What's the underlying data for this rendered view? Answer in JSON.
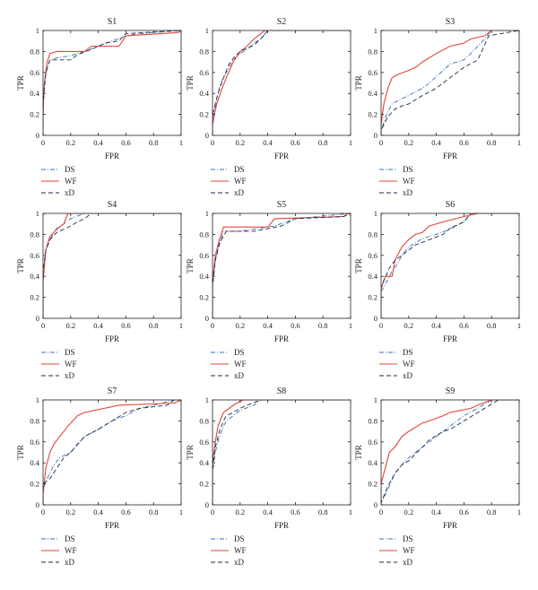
{
  "colors": {
    "DS": "#3a6fb0",
    "WF": "#e0463a",
    "xD": "#1c2a44",
    "axis": "#222222"
  },
  "chart_data": [
    {
      "type": "line",
      "title": "S1",
      "xlabel": "FPR",
      "ylabel": "TPR",
      "xlim": [
        0,
        1
      ],
      "ylim": [
        0,
        1
      ],
      "xticks": [
        "0",
        "0.2",
        "0.4",
        "0.6",
        "0.8",
        "1"
      ],
      "yticks": [
        "0",
        "0.2",
        "0.4",
        "0.6",
        "0.8",
        "1"
      ],
      "legend": [
        "DS",
        "WF",
        "xD"
      ],
      "legend_position": "below",
      "series": [
        {
          "name": "DS",
          "x": [
            0,
            0,
            0.01,
            0.03,
            0.05,
            0.1,
            0.2,
            0.3,
            0.4,
            0.5,
            0.6,
            0.7,
            1
          ],
          "y": [
            0,
            0.25,
            0.5,
            0.65,
            0.72,
            0.74,
            0.76,
            0.8,
            0.85,
            0.9,
            0.95,
            0.97,
            1
          ]
        },
        {
          "name": "WF",
          "x": [
            0,
            0,
            0.01,
            0.03,
            0.05,
            0.1,
            0.3,
            0.35,
            0.55,
            0.6,
            0.98,
            1
          ],
          "y": [
            0,
            0.2,
            0.5,
            0.7,
            0.78,
            0.8,
            0.8,
            0.85,
            0.85,
            0.95,
            0.98,
            1
          ]
        },
        {
          "name": "xD",
          "x": [
            0,
            0,
            0.02,
            0.05,
            0.2,
            0.25,
            0.35,
            0.45,
            0.55,
            0.6,
            1
          ],
          "y": [
            0,
            0.3,
            0.6,
            0.72,
            0.72,
            0.77,
            0.82,
            0.88,
            0.9,
            0.97,
            1
          ]
        }
      ]
    },
    {
      "type": "line",
      "title": "S2",
      "xlabel": "FPR",
      "ylabel": "TPR",
      "xlim": [
        0,
        1
      ],
      "ylim": [
        0,
        1
      ],
      "xticks": [
        "0",
        "0.2",
        "0.4",
        "0.6",
        "0.8",
        "1"
      ],
      "yticks": [
        "0",
        "0.2",
        "0.4",
        "0.6",
        "0.8",
        "1"
      ],
      "legend": [
        "DS",
        "WF",
        "xD"
      ],
      "legend_position": "below",
      "series": [
        {
          "name": "DS",
          "x": [
            0,
            0,
            0.03,
            0.06,
            0.1,
            0.15,
            0.2,
            0.25,
            0.3,
            0.35,
            0.4,
            1
          ],
          "y": [
            0,
            0.15,
            0.35,
            0.5,
            0.6,
            0.72,
            0.78,
            0.82,
            0.88,
            0.92,
            1,
            1
          ]
        },
        {
          "name": "WF",
          "x": [
            0,
            0,
            0.03,
            0.07,
            0.1,
            0.15,
            0.2,
            0.25,
            0.3,
            0.38,
            0.4,
            1
          ],
          "y": [
            0,
            0.1,
            0.3,
            0.45,
            0.55,
            0.7,
            0.8,
            0.85,
            0.92,
            1,
            1,
            1
          ]
        },
        {
          "name": "xD",
          "x": [
            0,
            0,
            0.04,
            0.08,
            0.12,
            0.16,
            0.2,
            0.3,
            0.35,
            0.4,
            1
          ],
          "y": [
            0,
            0.2,
            0.4,
            0.55,
            0.68,
            0.75,
            0.8,
            0.86,
            0.92,
            1,
            1
          ]
        }
      ]
    },
    {
      "type": "line",
      "title": "S3",
      "xlabel": "FPR",
      "ylabel": "TPR",
      "xlim": [
        0,
        1
      ],
      "ylim": [
        0,
        1
      ],
      "xticks": [
        "0",
        "0.2",
        "0.4",
        "0.6",
        "0.8",
        "1"
      ],
      "yticks": [
        "0",
        "0.2",
        "0.4",
        "0.6",
        "0.8",
        "1"
      ],
      "legend": [
        "DS",
        "WF",
        "xD"
      ],
      "legend_position": "below",
      "series": [
        {
          "name": "DS",
          "x": [
            0,
            0,
            0.04,
            0.08,
            0.15,
            0.2,
            0.3,
            0.35,
            0.45,
            0.5,
            0.6,
            0.65,
            0.75,
            0.8,
            1
          ],
          "y": [
            0,
            0.05,
            0.2,
            0.3,
            0.35,
            0.38,
            0.45,
            0.5,
            0.62,
            0.68,
            0.72,
            0.78,
            0.92,
            1,
            1
          ]
        },
        {
          "name": "WF",
          "x": [
            0,
            0,
            0.02,
            0.05,
            0.08,
            0.12,
            0.2,
            0.25,
            0.3,
            0.4,
            0.5,
            0.6,
            0.65,
            0.75,
            0.8,
            1
          ],
          "y": [
            0,
            0.1,
            0.3,
            0.45,
            0.55,
            0.58,
            0.62,
            0.65,
            0.7,
            0.78,
            0.85,
            0.88,
            0.92,
            0.95,
            1,
            1
          ]
        },
        {
          "name": "xD",
          "x": [
            0,
            0,
            0.05,
            0.1,
            0.15,
            0.2,
            0.3,
            0.4,
            0.45,
            0.5,
            0.55,
            0.6,
            0.7,
            0.78,
            1
          ],
          "y": [
            0,
            0.05,
            0.18,
            0.25,
            0.28,
            0.3,
            0.38,
            0.45,
            0.5,
            0.55,
            0.6,
            0.65,
            0.72,
            0.95,
            1
          ]
        }
      ]
    },
    {
      "type": "line",
      "title": "S4",
      "xlabel": "FPR",
      "ylabel": "TPR",
      "xlim": [
        0,
        1
      ],
      "ylim": [
        0,
        1
      ],
      "xticks": [
        "0",
        "0.2",
        "0.4",
        "0.6",
        "0.8",
        "1"
      ],
      "yticks": [
        "0",
        "0.2",
        "0.4",
        "0.6",
        "0.8",
        "1"
      ],
      "legend": [
        "DS",
        "WF",
        "xD"
      ],
      "legend_position": "below",
      "series": [
        {
          "name": "DS",
          "x": [
            0,
            0,
            0.02,
            0.05,
            0.08,
            0.1,
            0.15,
            0.2,
            0.3,
            1
          ],
          "y": [
            0,
            0.4,
            0.65,
            0.75,
            0.82,
            0.86,
            0.9,
            0.95,
            1,
            1
          ]
        },
        {
          "name": "WF",
          "x": [
            0,
            0,
            0.02,
            0.05,
            0.1,
            0.15,
            0.18,
            1
          ],
          "y": [
            0,
            0.35,
            0.65,
            0.78,
            0.85,
            0.9,
            1,
            1
          ]
        },
        {
          "name": "xD",
          "x": [
            0,
            0,
            0.02,
            0.05,
            0.1,
            0.15,
            0.2,
            0.25,
            0.3,
            0.35,
            1
          ],
          "y": [
            0,
            0.45,
            0.65,
            0.75,
            0.82,
            0.85,
            0.88,
            0.92,
            0.95,
            1,
            1
          ]
        }
      ]
    },
    {
      "type": "line",
      "title": "S5",
      "xlabel": "FPR",
      "ylabel": "TPR",
      "xlim": [
        0,
        1
      ],
      "ylim": [
        0,
        1
      ],
      "xticks": [
        "0",
        "0.2",
        "0.4",
        "0.6",
        "0.8",
        "1"
      ],
      "yticks": [
        "0",
        "0.2",
        "0.4",
        "0.6",
        "0.8",
        "1"
      ],
      "legend": [
        "DS",
        "WF",
        "xD"
      ],
      "legend_position": "below",
      "series": [
        {
          "name": "DS",
          "x": [
            0,
            0,
            0.02,
            0.05,
            0.08,
            0.2,
            0.3,
            0.45,
            0.6,
            1
          ],
          "y": [
            0,
            0.3,
            0.55,
            0.7,
            0.83,
            0.83,
            0.85,
            0.88,
            0.95,
            1
          ]
        },
        {
          "name": "WF",
          "x": [
            0,
            0,
            0.02,
            0.05,
            0.08,
            0.4,
            0.45,
            0.95,
            0.98,
            1
          ],
          "y": [
            0,
            0.35,
            0.6,
            0.75,
            0.87,
            0.87,
            0.95,
            0.97,
            1,
            1
          ]
        },
        {
          "name": "xD",
          "x": [
            0,
            0,
            0.02,
            0.05,
            0.1,
            0.3,
            0.5,
            0.6,
            0.95,
            1
          ],
          "y": [
            0,
            0.3,
            0.55,
            0.72,
            0.83,
            0.83,
            0.88,
            0.95,
            0.97,
            1
          ]
        }
      ]
    },
    {
      "type": "line",
      "title": "S6",
      "xlabel": "FPR",
      "ylabel": "TPR",
      "xlim": [
        0,
        1
      ],
      "ylim": [
        0,
        1
      ],
      "xticks": [
        "0",
        "0.2",
        "0.4",
        "0.6",
        "0.8",
        "1"
      ],
      "yticks": [
        "0",
        "0.2",
        "0.4",
        "0.6",
        "0.8",
        "1"
      ],
      "legend": [
        "DS",
        "WF",
        "xD"
      ],
      "legend_position": "below",
      "series": [
        {
          "name": "DS",
          "x": [
            0,
            0,
            0.04,
            0.08,
            0.12,
            0.15,
            0.2,
            0.25,
            0.3,
            0.4,
            0.5,
            0.6,
            0.65,
            1
          ],
          "y": [
            0,
            0.25,
            0.35,
            0.45,
            0.52,
            0.6,
            0.68,
            0.72,
            0.76,
            0.8,
            0.85,
            0.92,
            1,
            1
          ]
        },
        {
          "name": "WF",
          "x": [
            0,
            0,
            0.03,
            0.08,
            0.1,
            0.15,
            0.2,
            0.25,
            0.3,
            0.35,
            0.45,
            0.6,
            0.7,
            1
          ],
          "y": [
            0,
            0.28,
            0.4,
            0.4,
            0.55,
            0.68,
            0.75,
            0.8,
            0.82,
            0.88,
            0.92,
            0.97,
            1,
            1
          ]
        },
        {
          "name": "xD",
          "x": [
            0,
            0,
            0.04,
            0.06,
            0.1,
            0.15,
            0.2,
            0.25,
            0.35,
            0.45,
            0.5,
            0.6,
            0.65,
            1
          ],
          "y": [
            0,
            0.3,
            0.42,
            0.48,
            0.55,
            0.6,
            0.65,
            0.7,
            0.75,
            0.8,
            0.86,
            0.92,
            1,
            1
          ]
        }
      ]
    },
    {
      "type": "line",
      "title": "S7",
      "xlabel": "FPR",
      "ylabel": "TPR",
      "xlim": [
        0,
        1
      ],
      "ylim": [
        0,
        1
      ],
      "xticks": [
        "0",
        "0.2",
        "0.4",
        "0.6",
        "0.8",
        "1"
      ],
      "yticks": [
        "0",
        "0.2",
        "0.4",
        "0.6",
        "0.8",
        "1"
      ],
      "legend": [
        "DS",
        "WF",
        "xD"
      ],
      "legend_position": "below",
      "series": [
        {
          "name": "DS",
          "x": [
            0,
            0,
            0.04,
            0.08,
            0.12,
            0.2,
            0.25,
            0.3,
            0.4,
            0.5,
            0.6,
            0.7,
            0.8,
            0.95,
            1
          ],
          "y": [
            0,
            0.15,
            0.28,
            0.38,
            0.45,
            0.5,
            0.58,
            0.65,
            0.72,
            0.8,
            0.85,
            0.92,
            0.95,
            1,
            1
          ]
        },
        {
          "name": "WF",
          "x": [
            0,
            0,
            0.02,
            0.05,
            0.08,
            0.12,
            0.18,
            0.25,
            0.3,
            0.55,
            0.95,
            1
          ],
          "y": [
            0,
            0.1,
            0.35,
            0.5,
            0.58,
            0.65,
            0.75,
            0.85,
            0.88,
            0.95,
            0.97,
            1
          ]
        },
        {
          "name": "xD",
          "x": [
            0,
            0,
            0.05,
            0.1,
            0.15,
            0.2,
            0.3,
            0.4,
            0.5,
            0.6,
            0.7,
            0.9,
            0.95,
            1
          ],
          "y": [
            0,
            0.2,
            0.25,
            0.35,
            0.45,
            0.5,
            0.65,
            0.72,
            0.8,
            0.88,
            0.92,
            0.95,
            1,
            1
          ]
        }
      ]
    },
    {
      "type": "line",
      "title": "S8",
      "xlabel": "FPR",
      "ylabel": "TPR",
      "xlim": [
        0,
        1
      ],
      "ylim": [
        0,
        1
      ],
      "xticks": [
        "0",
        "0.2",
        "0.4",
        "0.6",
        "0.8",
        "1"
      ],
      "yticks": [
        "0",
        "0.2",
        "0.4",
        "0.6",
        "0.8",
        "1"
      ],
      "legend": [
        "DS",
        "WF",
        "xD"
      ],
      "legend_position": "below",
      "series": [
        {
          "name": "DS",
          "x": [
            0,
            0,
            0.02,
            0.05,
            0.08,
            0.1,
            0.15,
            0.2,
            0.3,
            0.35,
            1
          ],
          "y": [
            0,
            0.3,
            0.5,
            0.65,
            0.75,
            0.8,
            0.85,
            0.9,
            0.95,
            1,
            1
          ]
        },
        {
          "name": "WF",
          "x": [
            0,
            0,
            0.02,
            0.04,
            0.06,
            0.08,
            0.12,
            0.15,
            0.22,
            1
          ],
          "y": [
            0,
            0.4,
            0.6,
            0.75,
            0.82,
            0.88,
            0.92,
            0.95,
            1,
            1
          ]
        },
        {
          "name": "xD",
          "x": [
            0,
            0,
            0.02,
            0.05,
            0.08,
            0.1,
            0.15,
            0.2,
            0.25,
            0.35,
            1
          ],
          "y": [
            0,
            0.35,
            0.55,
            0.7,
            0.8,
            0.85,
            0.88,
            0.92,
            0.95,
            1,
            1
          ]
        }
      ]
    },
    {
      "type": "line",
      "title": "S9",
      "xlabel": "FPR",
      "ylabel": "TPR",
      "xlim": [
        0,
        1
      ],
      "ylim": [
        0,
        1
      ],
      "xticks": [
        "0",
        "0.2",
        "0.4",
        "0.6",
        "0.8",
        "1"
      ],
      "yticks": [
        "0",
        "0.2",
        "0.4",
        "0.6",
        "0.8",
        "1"
      ],
      "legend": [
        "DS",
        "WF",
        "xD"
      ],
      "legend_position": "below",
      "series": [
        {
          "name": "DS",
          "x": [
            0,
            0,
            0.05,
            0.1,
            0.15,
            0.2,
            0.3,
            0.4,
            0.45,
            0.5,
            0.6,
            0.7,
            0.8,
            1
          ],
          "y": [
            0,
            0.02,
            0.15,
            0.3,
            0.38,
            0.45,
            0.55,
            0.65,
            0.7,
            0.75,
            0.85,
            0.92,
            1,
            1
          ]
        },
        {
          "name": "WF",
          "x": [
            0,
            0,
            0.02,
            0.04,
            0.06,
            0.1,
            0.15,
            0.2,
            0.3,
            0.35,
            0.45,
            0.5,
            0.65,
            0.7,
            0.8,
            1
          ],
          "y": [
            0,
            0.2,
            0.3,
            0.4,
            0.5,
            0.55,
            0.65,
            0.7,
            0.78,
            0.8,
            0.85,
            0.88,
            0.92,
            0.95,
            1,
            1
          ]
        },
        {
          "name": "xD",
          "x": [
            0,
            0,
            0.05,
            0.1,
            0.15,
            0.2,
            0.3,
            0.35,
            0.45,
            0.5,
            0.6,
            0.7,
            0.75,
            0.85,
            1
          ],
          "y": [
            0,
            0.02,
            0.18,
            0.3,
            0.38,
            0.42,
            0.55,
            0.62,
            0.7,
            0.72,
            0.8,
            0.88,
            0.92,
            1,
            1
          ]
        }
      ]
    }
  ]
}
